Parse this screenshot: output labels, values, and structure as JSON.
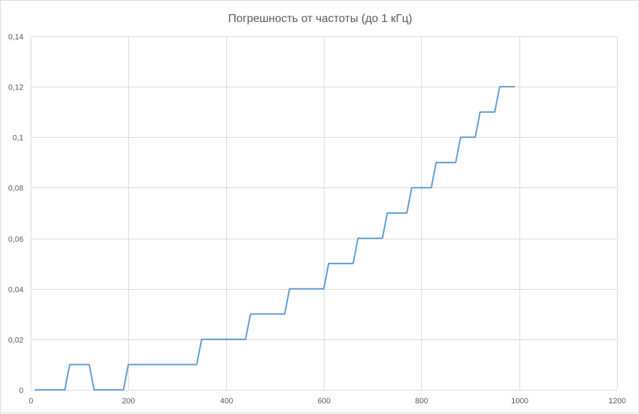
{
  "chart_data": {
    "type": "line",
    "title": "Погрешность от частоты (до 1 кГц)",
    "xlabel": "",
    "ylabel": "",
    "xlim": [
      0,
      1200
    ],
    "ylim": [
      0,
      0.14
    ],
    "x_ticks": [
      0,
      200,
      400,
      600,
      800,
      1000,
      1200
    ],
    "y_ticks": [
      0,
      0.02,
      0.04,
      0.06,
      0.08,
      0.1,
      0.12,
      0.14
    ],
    "x_tick_labels": [
      "0",
      "200",
      "400",
      "600",
      "800",
      "1000",
      "1200"
    ],
    "y_tick_labels": [
      "0",
      "0,02",
      "0,04",
      "0,06",
      "0,08",
      "0,1",
      "0,12",
      "0,14"
    ],
    "grid": true,
    "legend": "none",
    "series": [
      {
        "color": "#5b9bd5",
        "x": [
          10,
          70,
          80,
          120,
          130,
          190,
          200,
          340,
          350,
          440,
          450,
          520,
          530,
          600,
          610,
          660,
          670,
          720,
          730,
          770,
          780,
          820,
          830,
          870,
          880,
          910,
          920,
          950,
          960,
          990
        ],
        "y": [
          0,
          0,
          0.01,
          0.01,
          0,
          0,
          0.01,
          0.01,
          0.02,
          0.02,
          0.03,
          0.03,
          0.04,
          0.04,
          0.05,
          0.05,
          0.06,
          0.06,
          0.07,
          0.07,
          0.08,
          0.08,
          0.09,
          0.09,
          0.1,
          0.1,
          0.11,
          0.11,
          0.12,
          0.12
        ]
      }
    ]
  }
}
